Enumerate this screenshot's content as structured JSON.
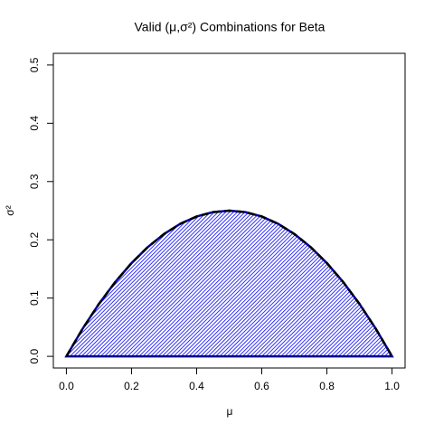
{
  "chart_data": {
    "type": "area",
    "title": "Valid (μ,σ²) Combinations for Beta",
    "x_label": "μ",
    "y_label": "σ²",
    "x": [
      0,
      0.05,
      0.1,
      0.15,
      0.2,
      0.25,
      0.3,
      0.35,
      0.4,
      0.45,
      0.5,
      0.55,
      0.6,
      0.65,
      0.7,
      0.75,
      0.8,
      0.85,
      0.9,
      0.95,
      1
    ],
    "values": [
      0,
      0.0475,
      0.09,
      0.1275,
      0.16,
      0.1875,
      0.21,
      0.2275,
      0.24,
      0.2475,
      0.25,
      0.2475,
      0.24,
      0.2275,
      0.21,
      0.1875,
      0.16,
      0.1275,
      0.09,
      0.0475,
      0
    ],
    "color": "#0000ff",
    "outline_color": "#000000",
    "base_color": "#00008b",
    "hatch": true,
    "xlim": [
      -0.04,
      1.04
    ],
    "xticks": [
      {
        "value": 0,
        "label": "0.0"
      },
      0.2,
      0.4,
      0.6,
      0.8,
      {
        "value": 1,
        "label": "1.0"
      }
    ],
    "ylim": [
      -0.02,
      0.52
    ],
    "yticks": [
      {
        "value": 0,
        "label": "0.0"
      },
      0.1,
      0.2,
      0.3,
      0.4,
      0.5
    ]
  }
}
